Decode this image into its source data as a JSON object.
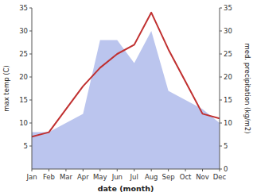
{
  "chart_data": {
    "type": "line",
    "categories": [
      "Jan",
      "Feb",
      "Mar",
      "Apr",
      "May",
      "Jun",
      "Jul",
      "Aug",
      "Sep",
      "Oct",
      "Nov",
      "Dec"
    ],
    "xlabel": "date (month)",
    "ylabel": "max temp (C)",
    "y2label": "med. precipitation (kg/m2)",
    "ylim": [
      0,
      35
    ],
    "yticks": [
      5,
      10,
      15,
      20,
      25,
      30,
      35
    ],
    "y2lim": [
      0,
      35
    ],
    "y2ticks": [
      0,
      5,
      10,
      15,
      20,
      25,
      30,
      35
    ],
    "grid": false,
    "series": [
      {
        "type": "line",
        "color": "#c03030",
        "values": [
          7,
          8,
          13,
          18,
          22,
          25,
          27,
          34,
          26,
          19,
          12,
          11
        ]
      },
      {
        "type": "area",
        "axis": "y2",
        "color": "#bbc5ee",
        "values": [
          8,
          8,
          10,
          12,
          28,
          28,
          23,
          30,
          17,
          15,
          13,
          10
        ]
      }
    ]
  }
}
